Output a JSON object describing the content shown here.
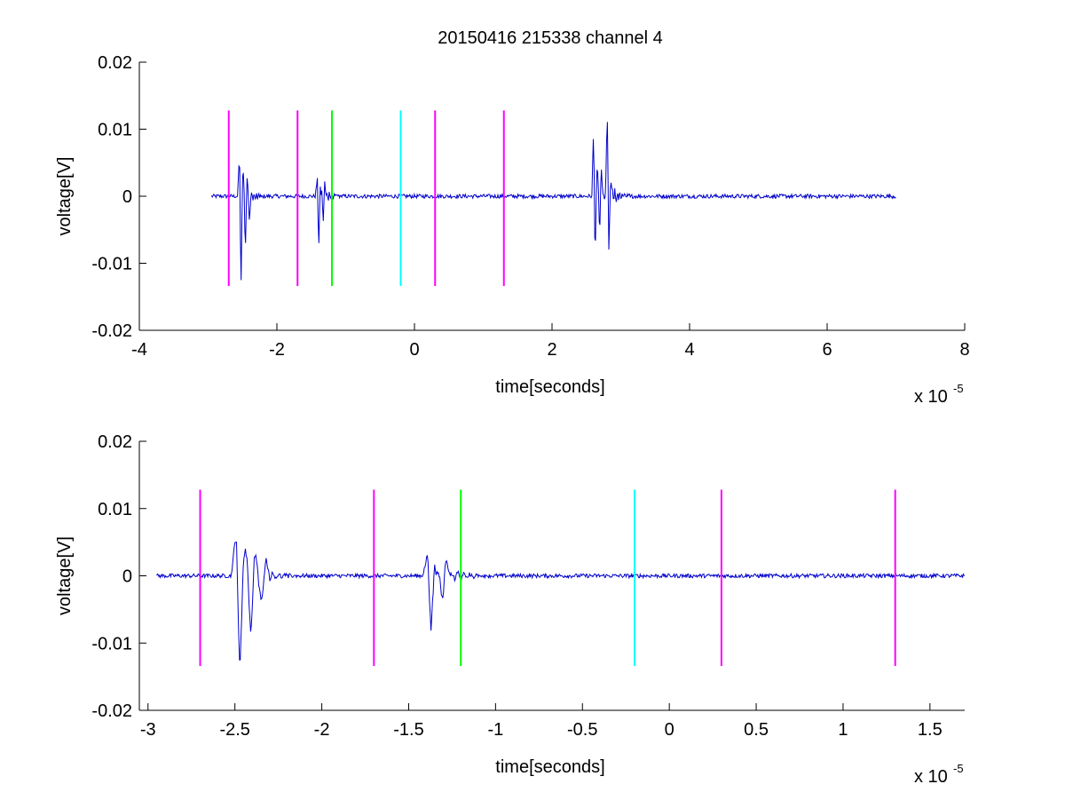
{
  "figure": {
    "title": "20150416 215338 channel 4"
  },
  "chart_data": [
    {
      "type": "line",
      "title": "20150416 215338 channel 4",
      "xlabel": "time[seconds]",
      "ylabel": "voltage[V]",
      "x_multiplier_label": "x 10",
      "x_multiplier_exponent": "-5",
      "xlim": [
        -4,
        8
      ],
      "ylim": [
        -0.02,
        0.02
      ],
      "x_ticks": [
        -4,
        -2,
        0,
        2,
        4,
        6,
        8
      ],
      "x_tick_labels": [
        "-4",
        "-2",
        "0",
        "2",
        "4",
        "6",
        "8"
      ],
      "y_ticks": [
        0.02,
        0.01,
        0,
        -0.01,
        -0.02
      ],
      "y_tick_labels": [
        "0.02",
        "0.01",
        "0",
        "-0.01",
        "-0.02"
      ],
      "grid": false,
      "signal": {
        "color": "#0000cc",
        "x_start": -2.95,
        "x_end": 7.0,
        "baseline_noise": 0.0003,
        "bursts": [
          {
            "x": -2.55,
            "amplitudes": [
              0.005,
              -0.012,
              0.0045,
              -0.008,
              0.003,
              -0.004
            ]
          },
          {
            "x": -1.42,
            "amplitudes": [
              0.002,
              -0.0065,
              0.0018,
              -0.003,
              0.002
            ]
          },
          {
            "x": 2.6,
            "amplitudes": [
              0.0085,
              -0.007,
              0.006,
              -0.005,
              0.004
            ]
          },
          {
            "x": 2.8,
            "amplitudes": [
              0.0115,
              -0.0065,
              0.003
            ]
          }
        ]
      },
      "markers": [
        {
          "x": -2.7,
          "color": "#ff00ff",
          "y_top": 0.0128,
          "y_bottom": -0.0134
        },
        {
          "x": -1.7,
          "color": "#ff00ff",
          "y_top": 0.0128,
          "y_bottom": -0.0134
        },
        {
          "x": -1.2,
          "color": "#00ff00",
          "y_top": 0.0128,
          "y_bottom": -0.0134
        },
        {
          "x": -0.2,
          "color": "#00ffff",
          "y_top": 0.0128,
          "y_bottom": -0.0134
        },
        {
          "x": 0.3,
          "color": "#ff00ff",
          "y_top": 0.0128,
          "y_bottom": -0.0134
        },
        {
          "x": 1.3,
          "color": "#ff00ff",
          "y_top": 0.0128,
          "y_bottom": -0.0134
        }
      ]
    },
    {
      "type": "line",
      "title": "",
      "xlabel": "time[seconds]",
      "ylabel": "voltage[V]",
      "x_multiplier_label": "x 10",
      "x_multiplier_exponent": "-5",
      "xlim": [
        -3.05,
        1.7
      ],
      "ylim": [
        -0.02,
        0.02
      ],
      "x_ticks": [
        -3,
        -2.5,
        -2,
        -1.5,
        -1,
        -0.5,
        0,
        0.5,
        1,
        1.5
      ],
      "x_tick_labels": [
        "-3",
        "-2.5",
        "-2",
        "-1.5",
        "-1",
        "-0.5",
        "0",
        "0.5",
        "1",
        "1.5"
      ],
      "y_ticks": [
        0.02,
        0.01,
        0,
        -0.01,
        -0.02
      ],
      "y_tick_labels": [
        "0.02",
        "0.01",
        "0",
        "-0.01",
        "-0.02"
      ],
      "grid": false,
      "signal": {
        "color": "#0000cc",
        "x_start": -2.95,
        "x_end": 1.7,
        "baseline_noise": 0.0003,
        "bursts": [
          {
            "x": -2.5,
            "amplitudes": [
              0.005,
              -0.012,
              0.0045,
              -0.008,
              0.003,
              -0.004,
              0.002
            ]
          },
          {
            "x": -1.4,
            "amplitudes": [
              0.002,
              -0.0065,
              0.0018,
              -0.003,
              0.002
            ]
          }
        ]
      },
      "markers": [
        {
          "x": -2.7,
          "color": "#ff00ff",
          "y_top": 0.0128,
          "y_bottom": -0.0134
        },
        {
          "x": -1.7,
          "color": "#ff00ff",
          "y_top": 0.0128,
          "y_bottom": -0.0134
        },
        {
          "x": -1.2,
          "color": "#00ff00",
          "y_top": 0.0128,
          "y_bottom": -0.0134
        },
        {
          "x": -0.2,
          "color": "#00ffff",
          "y_top": 0.0128,
          "y_bottom": -0.0134
        },
        {
          "x": 0.3,
          "color": "#ff00ff",
          "y_top": 0.0128,
          "y_bottom": -0.0134
        },
        {
          "x": 1.3,
          "color": "#ff00ff",
          "y_top": 0.0128,
          "y_bottom": -0.0134
        }
      ]
    }
  ]
}
